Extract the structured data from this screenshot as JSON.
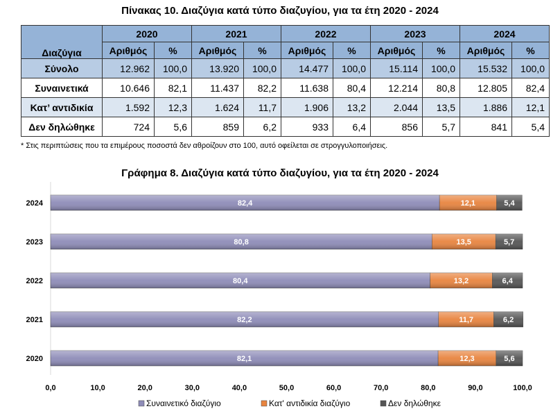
{
  "table": {
    "title": "Πίνακας 10. Διαζύγια κατά τύπο διαζυγίου, για τα έτη 2020 - 2024",
    "row_header": "Διαζύγια",
    "years": [
      "2020",
      "2021",
      "2022",
      "2023",
      "2024"
    ],
    "sub_headers": [
      "Αριθμός",
      "%"
    ],
    "rows": [
      {
        "label": "Σύνολο",
        "cells": [
          "12.962",
          "100,0",
          "13.920",
          "100,0",
          "14.477",
          "100,0",
          "15.114",
          "100,0",
          "15.532",
          "100,0"
        ]
      },
      {
        "label": "Συναινετικά",
        "cells": [
          "10.646",
          "82,1",
          "11.437",
          "82,2",
          "11.638",
          "80,4",
          "12.214",
          "80,8",
          "12.805",
          "82,4"
        ]
      },
      {
        "label": "Κατ’ αντιδικία",
        "cells": [
          "1.592",
          "12,3",
          "1.624",
          "11,7",
          "1.906",
          "13,2",
          "2.044",
          "13,5",
          "1.886",
          "12,1"
        ]
      },
      {
        "label": "Δεν δηλώθηκε",
        "cells": [
          "724",
          "5,6",
          "859",
          "6,2",
          "933",
          "6,4",
          "856",
          "5,7",
          "841",
          "5,4"
        ]
      }
    ],
    "footnote": "* Στις περιπτώσεις που τα επιμέρους ποσοστά δεν αθροίζουν στο 100, αυτό οφείλεται σε στρογγυλοποιήσεις."
  },
  "chart_data": {
    "type": "bar",
    "orientation": "horizontal",
    "stacked": true,
    "title": "Γράφημα 8. Διαζύγια κατά τύπο διαζυγίου, για τα έτη 2020 - 2024",
    "categories": [
      "2024",
      "2023",
      "2022",
      "2021",
      "2020"
    ],
    "xlim": [
      0,
      100
    ],
    "xticks": [
      "0,0",
      "10,0",
      "20,0",
      "30,0",
      "40,0",
      "50,0",
      "60,0",
      "70,0",
      "80,0",
      "90,0",
      "100,0"
    ],
    "legend_position": "bottom",
    "series": [
      {
        "name": "Συναινετικό διαζύγιο",
        "color": "#8e8cb8",
        "values": [
          82.4,
          80.8,
          80.4,
          82.2,
          82.1
        ],
        "labels": [
          "82,4",
          "80,8",
          "80,4",
          "82,2",
          "82,1"
        ]
      },
      {
        "name": "Κατ' αντιδικία διαζύγιο",
        "color": "#e8843f",
        "values": [
          12.1,
          13.5,
          13.2,
          11.7,
          12.3
        ],
        "labels": [
          "12,1",
          "13,5",
          "13,2",
          "11,7",
          "12,3"
        ]
      },
      {
        "name": "Δεν δηλώθηκε",
        "color": "#555555",
        "values": [
          5.4,
          5.7,
          6.4,
          6.2,
          5.6
        ],
        "labels": [
          "5,4",
          "5,7",
          "6,4",
          "6,2",
          "5,6"
        ]
      }
    ]
  }
}
